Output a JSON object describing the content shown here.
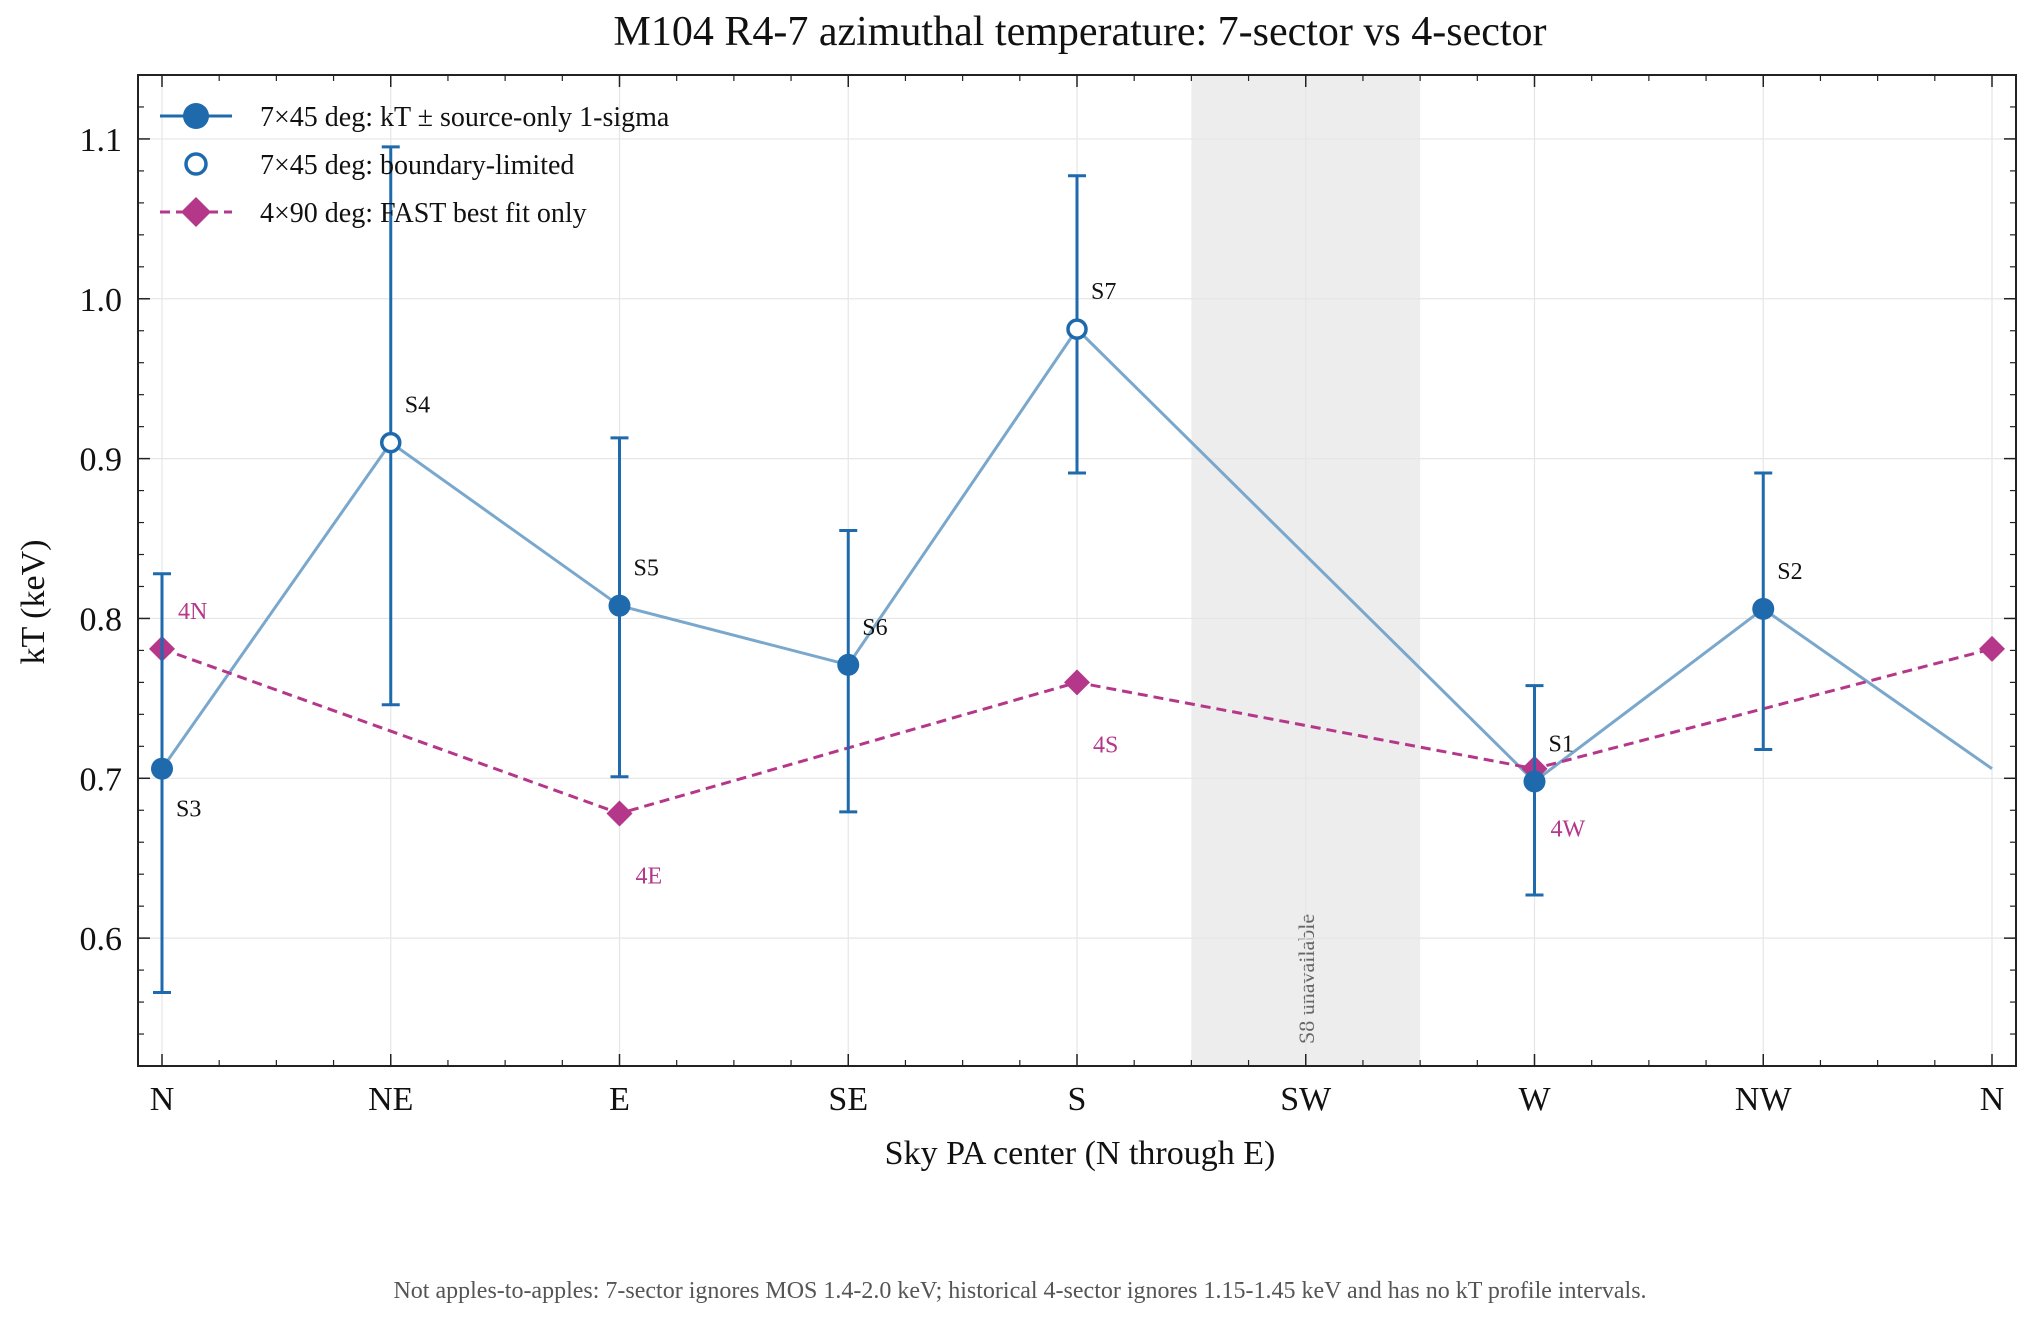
{
  "chart_data": {
    "type": "line",
    "title": "M104 R4-7 azimuthal temperature: 7-sector vs 4-sector",
    "xlabel": "Sky PA center (N through E)",
    "ylabel": "kT (keV)",
    "x_ticks": [
      "N",
      "NE",
      "E",
      "SE",
      "S",
      "SW",
      "W",
      "NW",
      "N"
    ],
    "x_range": [
      0,
      360
    ],
    "ylim": [
      0.52,
      1.14
    ],
    "y_ticks": [
      0.6,
      0.7,
      0.8,
      0.9,
      1.0,
      1.1
    ],
    "y_tick_labels": [
      "0.6",
      "0.7",
      "0.8",
      "0.9",
      "1.0",
      "1.1"
    ],
    "grid": true,
    "legend_position": "top-left",
    "shaded_region": {
      "x_range": [
        202.5,
        247.5
      ],
      "label": "S8 unavailable"
    },
    "series": [
      {
        "name": "7×45 deg: kT ± source-only 1-sigma",
        "marker": "filled-circle",
        "color": "#1f6aad",
        "line_color": "#7aa8cd",
        "points": [
          {
            "label": "S3",
            "x": 0,
            "y": 0.706,
            "err_low": 0.566,
            "err_high": 0.828,
            "boundary": false
          },
          {
            "label": "S4",
            "x": 45,
            "y": 0.91,
            "err_low": 0.746,
            "err_high": 1.095,
            "boundary": true
          },
          {
            "label": "S5",
            "x": 90,
            "y": 0.808,
            "err_low": 0.701,
            "err_high": 0.913,
            "boundary": false
          },
          {
            "label": "S6",
            "x": 135,
            "y": 0.771,
            "err_low": 0.679,
            "err_high": 0.855,
            "boundary": false
          },
          {
            "label": "S7",
            "x": 180,
            "y": 0.981,
            "err_low": 0.891,
            "err_high": 1.077,
            "boundary": true
          },
          {
            "label": "S1",
            "x": 270,
            "y": 0.698,
            "err_low": 0.627,
            "err_high": 0.758,
            "boundary": false
          },
          {
            "label": "S2",
            "x": 315,
            "y": 0.806,
            "err_low": 0.718,
            "err_high": 0.891,
            "boundary": false
          }
        ],
        "wrap_point": {
          "x": 360,
          "y": 0.706
        }
      },
      {
        "name": "4×90 deg: FAST best fit only",
        "marker": "diamond",
        "color": "#b5378a",
        "line_style": "dashed",
        "points": [
          {
            "label": "4N",
            "x": 0,
            "y": 0.781
          },
          {
            "label": "4E",
            "x": 90,
            "y": 0.678
          },
          {
            "label": "4S",
            "x": 180,
            "y": 0.76
          },
          {
            "label": "4W",
            "x": 270,
            "y": 0.706
          },
          {
            "label": "",
            "x": 360,
            "y": 0.781
          }
        ]
      }
    ],
    "legend": [
      {
        "label": "7×45 deg: kT ± source-only 1-sigma",
        "style": "filled-circle-line"
      },
      {
        "label": "7×45 deg: boundary-limited",
        "style": "open-circle"
      },
      {
        "label": "4×90 deg: FAST best fit only",
        "style": "diamond-dashed"
      }
    ],
    "footnote": "Not apples-to-apples: 7-sector ignores MOS 1.4-2.0 keV; historical 4-sector ignores 1.15-1.45 keV and has no kT profile intervals."
  }
}
